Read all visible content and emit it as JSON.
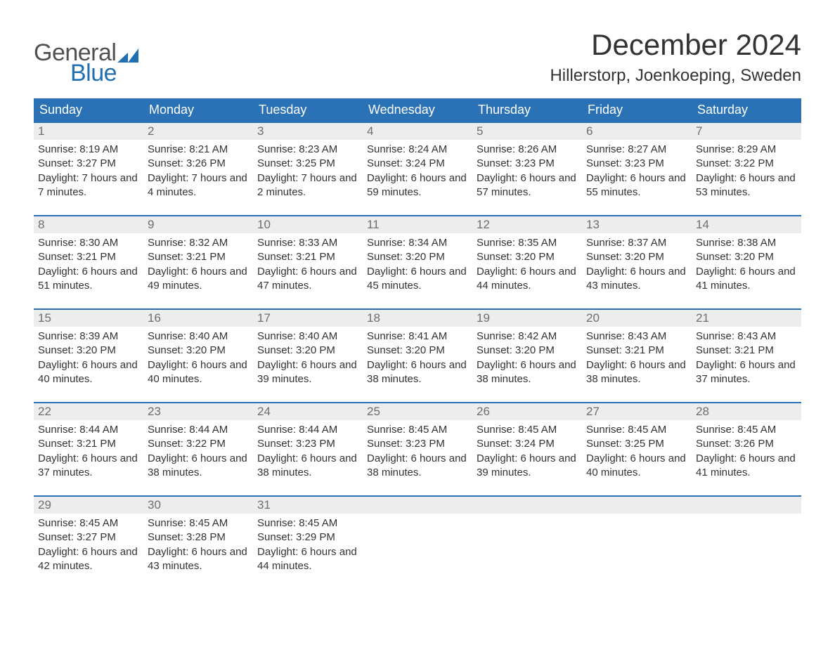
{
  "branding": {
    "logo_word_1": "General",
    "logo_word_2": "Blue",
    "logo_text_gray": "#505050",
    "logo_text_blue": "#1f6fb2",
    "logo_flag_color": "#1f6fb2"
  },
  "header": {
    "title": "December 2024",
    "location": "Hillerstorp, Joenkoeping, Sweden"
  },
  "styling": {
    "page_background": "#ffffff",
    "header_bar_color": "#2a72b5",
    "header_bar_text_color": "#ffffff",
    "week_top_border_color": "#2a72b5",
    "day_number_strip_bg": "#ededed",
    "day_number_text_color": "#6e6e6e",
    "body_text_color": "#333333",
    "title_fontsize_pt": 32,
    "location_fontsize_pt": 18,
    "dow_fontsize_pt": 14,
    "day_number_fontsize_pt": 13,
    "body_fontsize_pt": 11.5,
    "columns": 7,
    "rows": 5
  },
  "days_of_week": [
    "Sunday",
    "Monday",
    "Tuesday",
    "Wednesday",
    "Thursday",
    "Friday",
    "Saturday"
  ],
  "weeks": [
    [
      {
        "n": "1",
        "sunrise": "8:19 AM",
        "sunset": "3:27 PM",
        "daylight": "7 hours and 7 minutes."
      },
      {
        "n": "2",
        "sunrise": "8:21 AM",
        "sunset": "3:26 PM",
        "daylight": "7 hours and 4 minutes."
      },
      {
        "n": "3",
        "sunrise": "8:23 AM",
        "sunset": "3:25 PM",
        "daylight": "7 hours and 2 minutes."
      },
      {
        "n": "4",
        "sunrise": "8:24 AM",
        "sunset": "3:24 PM",
        "daylight": "6 hours and 59 minutes."
      },
      {
        "n": "5",
        "sunrise": "8:26 AM",
        "sunset": "3:23 PM",
        "daylight": "6 hours and 57 minutes."
      },
      {
        "n": "6",
        "sunrise": "8:27 AM",
        "sunset": "3:23 PM",
        "daylight": "6 hours and 55 minutes."
      },
      {
        "n": "7",
        "sunrise": "8:29 AM",
        "sunset": "3:22 PM",
        "daylight": "6 hours and 53 minutes."
      }
    ],
    [
      {
        "n": "8",
        "sunrise": "8:30 AM",
        "sunset": "3:21 PM",
        "daylight": "6 hours and 51 minutes."
      },
      {
        "n": "9",
        "sunrise": "8:32 AM",
        "sunset": "3:21 PM",
        "daylight": "6 hours and 49 minutes."
      },
      {
        "n": "10",
        "sunrise": "8:33 AM",
        "sunset": "3:21 PM",
        "daylight": "6 hours and 47 minutes."
      },
      {
        "n": "11",
        "sunrise": "8:34 AM",
        "sunset": "3:20 PM",
        "daylight": "6 hours and 45 minutes."
      },
      {
        "n": "12",
        "sunrise": "8:35 AM",
        "sunset": "3:20 PM",
        "daylight": "6 hours and 44 minutes."
      },
      {
        "n": "13",
        "sunrise": "8:37 AM",
        "sunset": "3:20 PM",
        "daylight": "6 hours and 43 minutes."
      },
      {
        "n": "14",
        "sunrise": "8:38 AM",
        "sunset": "3:20 PM",
        "daylight": "6 hours and 41 minutes."
      }
    ],
    [
      {
        "n": "15",
        "sunrise": "8:39 AM",
        "sunset": "3:20 PM",
        "daylight": "6 hours and 40 minutes."
      },
      {
        "n": "16",
        "sunrise": "8:40 AM",
        "sunset": "3:20 PM",
        "daylight": "6 hours and 40 minutes."
      },
      {
        "n": "17",
        "sunrise": "8:40 AM",
        "sunset": "3:20 PM",
        "daylight": "6 hours and 39 minutes."
      },
      {
        "n": "18",
        "sunrise": "8:41 AM",
        "sunset": "3:20 PM",
        "daylight": "6 hours and 38 minutes."
      },
      {
        "n": "19",
        "sunrise": "8:42 AM",
        "sunset": "3:20 PM",
        "daylight": "6 hours and 38 minutes."
      },
      {
        "n": "20",
        "sunrise": "8:43 AM",
        "sunset": "3:21 PM",
        "daylight": "6 hours and 38 minutes."
      },
      {
        "n": "21",
        "sunrise": "8:43 AM",
        "sunset": "3:21 PM",
        "daylight": "6 hours and 37 minutes."
      }
    ],
    [
      {
        "n": "22",
        "sunrise": "8:44 AM",
        "sunset": "3:21 PM",
        "daylight": "6 hours and 37 minutes."
      },
      {
        "n": "23",
        "sunrise": "8:44 AM",
        "sunset": "3:22 PM",
        "daylight": "6 hours and 38 minutes."
      },
      {
        "n": "24",
        "sunrise": "8:44 AM",
        "sunset": "3:23 PM",
        "daylight": "6 hours and 38 minutes."
      },
      {
        "n": "25",
        "sunrise": "8:45 AM",
        "sunset": "3:23 PM",
        "daylight": "6 hours and 38 minutes."
      },
      {
        "n": "26",
        "sunrise": "8:45 AM",
        "sunset": "3:24 PM",
        "daylight": "6 hours and 39 minutes."
      },
      {
        "n": "27",
        "sunrise": "8:45 AM",
        "sunset": "3:25 PM",
        "daylight": "6 hours and 40 minutes."
      },
      {
        "n": "28",
        "sunrise": "8:45 AM",
        "sunset": "3:26 PM",
        "daylight": "6 hours and 41 minutes."
      }
    ],
    [
      {
        "n": "29",
        "sunrise": "8:45 AM",
        "sunset": "3:27 PM",
        "daylight": "6 hours and 42 minutes."
      },
      {
        "n": "30",
        "sunrise": "8:45 AM",
        "sunset": "3:28 PM",
        "daylight": "6 hours and 43 minutes."
      },
      {
        "n": "31",
        "sunrise": "8:45 AM",
        "sunset": "3:29 PM",
        "daylight": "6 hours and 44 minutes."
      },
      null,
      null,
      null,
      null
    ]
  ],
  "labels": {
    "sunrise_prefix": "Sunrise: ",
    "sunset_prefix": "Sunset: ",
    "daylight_prefix": "Daylight: "
  }
}
